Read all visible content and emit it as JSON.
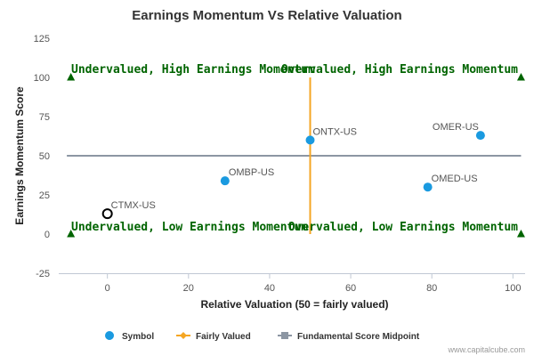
{
  "chart_data": {
    "type": "scatter",
    "title": "Earnings Momentum Vs Relative Valuation",
    "xlabel": "Relative Valuation (50 = fairly valued)",
    "ylabel": "Earnings Momentum Score",
    "xlim": [
      -12,
      103
    ],
    "ylim": [
      -25,
      125
    ],
    "xticks": [
      0,
      20,
      40,
      60,
      80,
      100
    ],
    "yticks": [
      -25,
      0,
      25,
      50,
      75,
      100,
      125
    ],
    "grid": false,
    "legend_position": "bottom",
    "points": [
      {
        "label": "CTMX-US",
        "x": 0,
        "y": 13,
        "style": "hollow"
      },
      {
        "label": "OMBP-US",
        "x": 29,
        "y": 34,
        "style": "filled"
      },
      {
        "label": "ONTX-US",
        "x": 50,
        "y": 60,
        "style": "filled"
      },
      {
        "label": "OMER-US",
        "x": 92,
        "y": 63,
        "style": "filled"
      },
      {
        "label": "OMED-US",
        "x": 79,
        "y": 30,
        "style": "filled"
      }
    ],
    "fairly_valued_line": {
      "x": 50,
      "y_from": 0,
      "y_to": 100
    },
    "midpoint_line": {
      "y": 50,
      "x_from": -10,
      "x_to": 102
    },
    "corner_markers": [
      {
        "x": -9,
        "y": 100
      },
      {
        "x": 102,
        "y": 100
      },
      {
        "x": -9,
        "y": 0
      },
      {
        "x": 102,
        "y": 0
      }
    ],
    "quadrant_labels": {
      "top_left": "Undervalued, High Earnings Momentum",
      "top_right": "Overvalued, High Earnings Momentum",
      "bottom_left": "Undervalued, Low Earnings Momentum",
      "bottom_right": "Overvalued, Low Earnings Momentum"
    },
    "legend": [
      {
        "name": "Symbol",
        "kind": "dot"
      },
      {
        "name": "Fairly Valued",
        "kind": "line-diamond"
      },
      {
        "name": "Fundamental Score Midpoint",
        "kind": "line-square"
      }
    ]
  },
  "colors": {
    "symbol": "#1a9ae0",
    "fairly_valued": "#f5a623",
    "midpoint": "#8c96a3",
    "quadrant_text": "#006400",
    "marker": "#006400",
    "hollow_stroke": "#000000"
  },
  "credit": "www.capitalcube.com"
}
